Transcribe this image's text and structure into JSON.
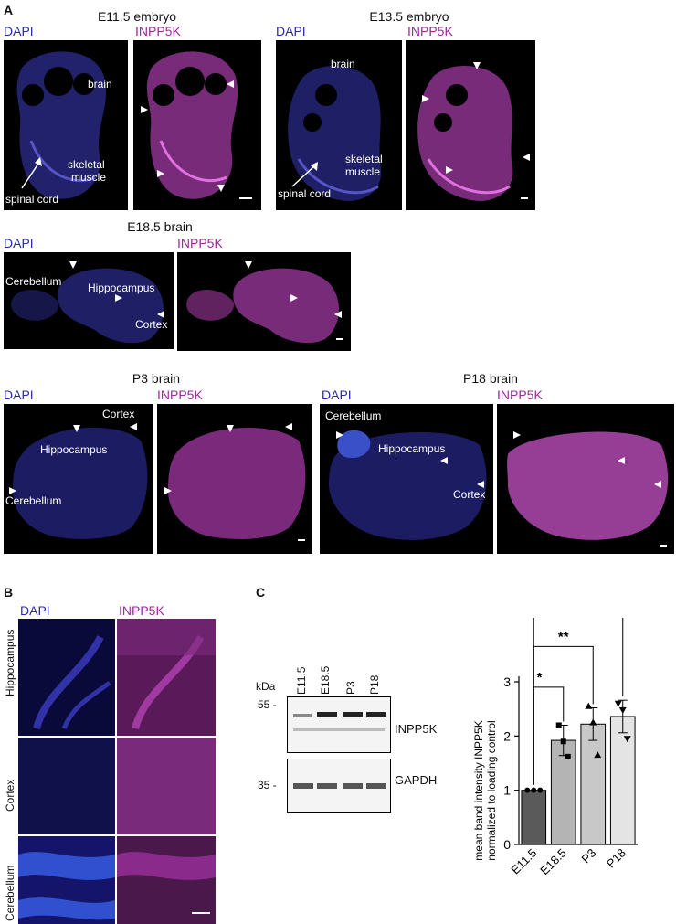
{
  "panels": {
    "A": {
      "letter": "A",
      "e115": {
        "title": "E11.5 embryo",
        "dapi": "DAPI",
        "inpp": "INPP5K",
        "brain": "brain",
        "skeletal": "skeletal",
        "muscle": "muscle",
        "spinal": "spinal cord"
      },
      "e135": {
        "title": "E13.5 embryo",
        "dapi": "DAPI",
        "inpp": "INPP5K",
        "brain": "brain",
        "skeletal": "skeletal",
        "muscle": "muscle",
        "spinal": "spinal cord"
      },
      "e185": {
        "title": "E18.5 brain",
        "dapi": "DAPI",
        "inpp": "INPP5K",
        "cerebellum": "Cerebellum",
        "hippocampus": "Hippocampus",
        "cortex": "Cortex"
      },
      "p3": {
        "title": "P3 brain",
        "dapi": "DAPI",
        "inpp": "INPP5K",
        "cortex": "Cortex",
        "hippocampus": "Hippocampus",
        "cerebellum": "Cerebellum"
      },
      "p18": {
        "title": "P18 brain",
        "dapi": "DAPI",
        "inpp": "INPP5K",
        "cerebellum": "Cerebellum",
        "hippocampus": "Hippocampus",
        "cortex": "Cortex"
      }
    },
    "B": {
      "letter": "B",
      "dapi": "DAPI",
      "inpp": "INPP5K",
      "rows": [
        "Hippocampus",
        "Cortex",
        "Cerebellum"
      ]
    },
    "C": {
      "letter": "C",
      "blot": {
        "lanes": [
          "E11.5",
          "E18.5",
          "P3",
          "P18"
        ],
        "kda_label": "kDa",
        "markers": [
          "55 -",
          "35 -"
        ],
        "bands": [
          "INPP5K",
          "GAPDH"
        ]
      }
    }
  },
  "chart_data": {
    "type": "bar",
    "categories": [
      "E11.5",
      "E18.5",
      "P3",
      "P18"
    ],
    "values": [
      1.0,
      1.92,
      2.22,
      2.36
    ],
    "errors": [
      0.0,
      0.28,
      0.3,
      0.3
    ],
    "points": [
      [
        1.0,
        1.0,
        1.0
      ],
      [
        2.2,
        1.9,
        1.62
      ],
      [
        2.55,
        2.25,
        1.65
      ],
      [
        2.6,
        2.48,
        1.95
      ]
    ],
    "bar_colors": [
      "#5a5a5a",
      "#b4b4b4",
      "#c8c8c8",
      "#e4e4e4"
    ],
    "ylabel": "mean band intensity INPP5K normalized to loading control",
    "ylim": [
      0,
      3
    ],
    "yticks": [
      0,
      1,
      2,
      3
    ],
    "significance": [
      {
        "from": "E11.5",
        "to": "E18.5",
        "label": "*"
      },
      {
        "from": "E11.5",
        "to": "P3",
        "label": "**"
      },
      {
        "from": "E11.5",
        "to": "P18",
        "label": "**"
      }
    ]
  }
}
